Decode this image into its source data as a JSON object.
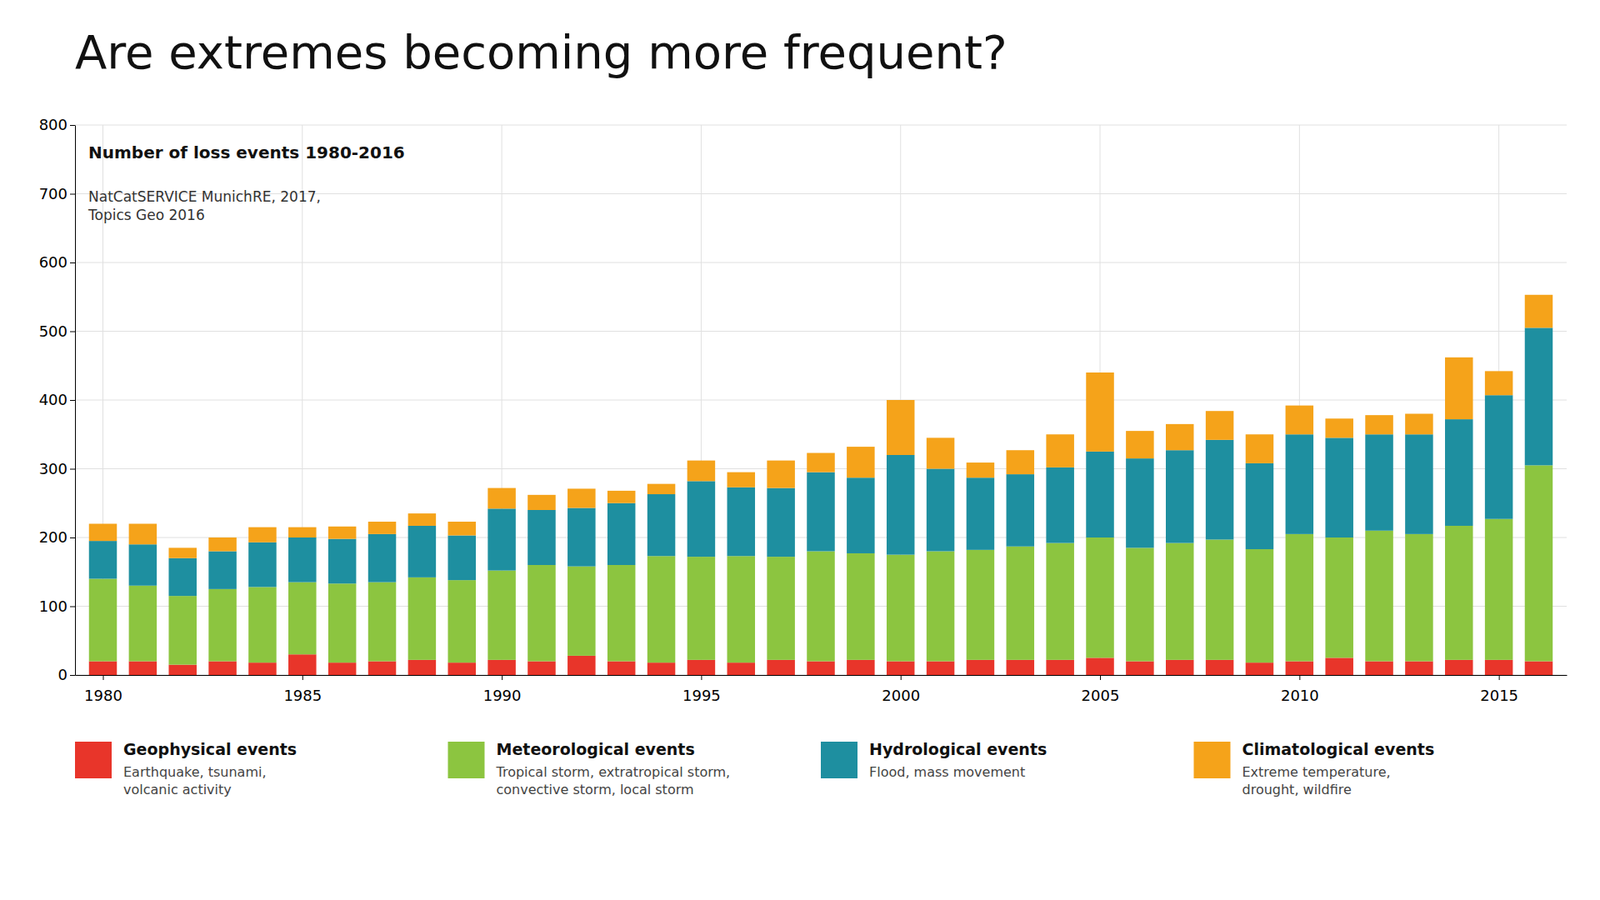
{
  "chart_data": {
    "type": "bar",
    "stacked": true,
    "title": "Are extremes becoming more frequent?",
    "annotations": [
      "Number of loss events 1980-2016",
      "NatCatSERVICE MunichRE, 2017,\nTopics Geo 2016"
    ],
    "x": [
      1980,
      1981,
      1982,
      1983,
      1984,
      1985,
      1986,
      1987,
      1988,
      1989,
      1990,
      1991,
      1992,
      1993,
      1994,
      1995,
      1996,
      1997,
      1998,
      1999,
      2000,
      2001,
      2002,
      2003,
      2004,
      2005,
      2006,
      2007,
      2008,
      2009,
      2010,
      2011,
      2012,
      2013,
      2014,
      2015,
      2016
    ],
    "series": [
      {
        "name": "Geophysical events",
        "sublabel": "Earthquake, tsunami,\nvolcanic activity",
        "color": "#e8352a",
        "values": [
          20,
          20,
          15,
          20,
          18,
          30,
          18,
          20,
          22,
          18,
          22,
          20,
          28,
          20,
          18,
          22,
          18,
          22,
          20,
          22,
          20,
          20,
          22,
          22,
          22,
          25,
          20,
          22,
          22,
          18,
          20,
          25,
          20,
          20,
          22,
          22,
          20
        ]
      },
      {
        "name": "Meteorological events",
        "sublabel": "Tropical storm, extratropical storm,\nconvective storm, local storm",
        "color": "#8cc540",
        "values": [
          120,
          110,
          100,
          105,
          110,
          105,
          115,
          115,
          120,
          120,
          130,
          140,
          130,
          140,
          155,
          150,
          155,
          150,
          160,
          155,
          155,
          160,
          160,
          165,
          170,
          175,
          165,
          170,
          175,
          165,
          185,
          175,
          190,
          185,
          195,
          205,
          285
        ]
      },
      {
        "name": "Hydrological events",
        "sublabel": "Flood, mass movement",
        "color": "#1e8fa0",
        "values": [
          55,
          60,
          55,
          55,
          65,
          65,
          65,
          70,
          75,
          65,
          90,
          80,
          85,
          90,
          90,
          110,
          100,
          100,
          115,
          110,
          145,
          120,
          105,
          105,
          110,
          125,
          130,
          135,
          145,
          125,
          145,
          145,
          140,
          145,
          155,
          180,
          200
        ]
      },
      {
        "name": "Climatological events",
        "sublabel": "Extreme temperature,\ndrought, wildfire",
        "color": "#f5a31a",
        "values": [
          25,
          30,
          15,
          20,
          22,
          15,
          18,
          18,
          18,
          20,
          30,
          22,
          28,
          18,
          15,
          30,
          22,
          40,
          28,
          45,
          80,
          45,
          22,
          35,
          48,
          115,
          40,
          38,
          42,
          42,
          42,
          28,
          28,
          30,
          90,
          35,
          48
        ]
      }
    ],
    "xlim": [
      1979.3,
      2016.7
    ],
    "xticks": [
      1980,
      1985,
      1990,
      1995,
      2000,
      2005,
      2010,
      2015
    ],
    "ylim": [
      0,
      800
    ],
    "yticks": [
      0,
      100,
      200,
      300,
      400,
      500,
      600,
      700,
      800
    ],
    "grid": true,
    "legend": "bottom"
  }
}
